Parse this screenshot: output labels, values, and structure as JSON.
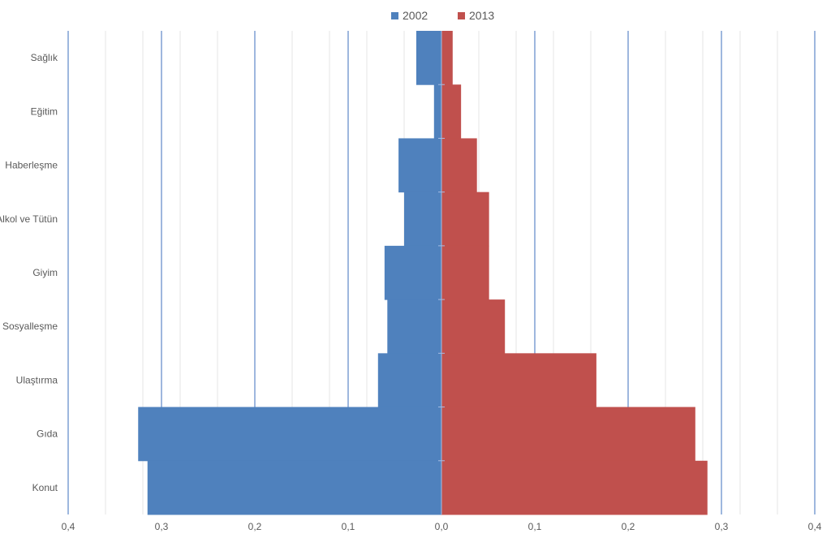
{
  "chart_data": {
    "type": "bar",
    "orientation": "horizontal",
    "layout": "butterfly",
    "categories": [
      "Sağlık",
      "Eğitim",
      "Haberleşme",
      "Alkol ve Tütün",
      "Giyim",
      "Sosyalleşme",
      "Ulaştırma",
      "Gıda",
      "Konut"
    ],
    "series": [
      {
        "name": "2002",
        "color": "#4f81bd",
        "direction": "left",
        "values": [
          0.027,
          0.008,
          0.046,
          0.04,
          0.061,
          0.058,
          0.068,
          0.325,
          0.315
        ]
      },
      {
        "name": "2013",
        "color": "#c0504d",
        "direction": "right",
        "values": [
          0.012,
          0.021,
          0.038,
          0.051,
          0.051,
          0.068,
          0.166,
          0.272,
          0.285
        ]
      }
    ],
    "x_ticks": [
      {
        "value": -0.4,
        "label": "0,4"
      },
      {
        "value": -0.3,
        "label": "0,3"
      },
      {
        "value": -0.2,
        "label": "0,2"
      },
      {
        "value": -0.1,
        "label": "0,1"
      },
      {
        "value": 0.0,
        "label": "0,0"
      },
      {
        "value": 0.1,
        "label": "0,1"
      },
      {
        "value": 0.2,
        "label": "0,2"
      },
      {
        "value": 0.3,
        "label": "0,3"
      },
      {
        "value": 0.4,
        "label": "0,4"
      }
    ],
    "xlim": [
      -0.4,
      0.4
    ],
    "major_grid": true,
    "minor_grid": true,
    "minor_grid_step": 0.04,
    "legend_position": "top",
    "title": "",
    "xlabel": "",
    "ylabel": ""
  }
}
